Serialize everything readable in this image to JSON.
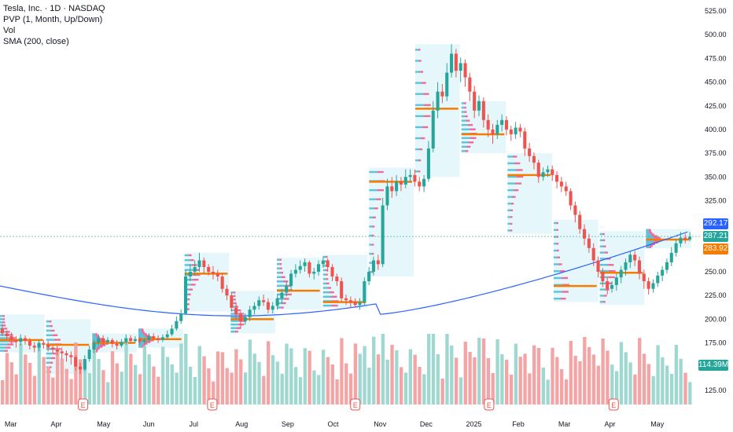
{
  "legend": {
    "title": "Tesla, Inc. · 1D · NASDAQ",
    "indicator1": "PVP (1, Month, Up/Down)",
    "indicator2": "Vol",
    "indicator3": "SMA (200, close)"
  },
  "price_tags": [
    {
      "value": "292.17",
      "color": "#2962ff"
    },
    {
      "value": "287.21",
      "color": "#26a69a"
    },
    {
      "value": "283.92",
      "color": "#f57c00"
    },
    {
      "value": "114.39M",
      "color": "#26a69a"
    }
  ],
  "colors": {
    "up": "#26a69a",
    "down": "#ef5350",
    "sma": "#2962ff",
    "poc": "#f57c00",
    "vol_up": "#9fd8d1",
    "vol_down": "#f4a4a4",
    "profile_bg": "#e6f7fb",
    "prof_up": "#5bc4dc",
    "prof_down": "#ec6d9a"
  },
  "chart_data": {
    "type": "candlestick",
    "ylim": [
      110,
      530
    ],
    "y_ticks": [
      "525.00",
      "500.00",
      "475.00",
      "450.00",
      "425.00",
      "400.00",
      "375.00",
      "350.00",
      "325.00",
      "300.00",
      "275.00",
      "250.00",
      "225.00",
      "200.00",
      "175.00",
      "150.00",
      "125.00"
    ],
    "x_ticks": [
      "Mar",
      "Apr",
      "May",
      "Jun",
      "Jul",
      "Aug",
      "Sep",
      "Oct",
      "Nov",
      "Dec",
      "2025",
      "Feb",
      "Mar",
      "Apr",
      "May"
    ],
    "earnings_markers": [
      "E",
      "E",
      "E",
      "E",
      "E"
    ],
    "monthly_profiles": [
      {
        "month": "Mar",
        "low": 165,
        "high": 205,
        "poc": 178
      },
      {
        "month": "Apr",
        "low": 142,
        "high": 200,
        "poc": 173
      },
      {
        "month": "May",
        "low": 165,
        "high": 185,
        "poc": 175
      },
      {
        "month": "Jun",
        "low": 170,
        "high": 190,
        "poc": 179
      },
      {
        "month": "Jul",
        "low": 208,
        "high": 270,
        "poc": 248
      },
      {
        "month": "Aug",
        "low": 185,
        "high": 230,
        "poc": 200
      },
      {
        "month": "Sep",
        "low": 210,
        "high": 265,
        "poc": 230
      },
      {
        "month": "Oct",
        "low": 212,
        "high": 268,
        "poc": 218
      },
      {
        "month": "Nov",
        "low": 245,
        "high": 360,
        "poc": 345
      },
      {
        "month": "Dec",
        "low": 350,
        "high": 490,
        "poc": 422
      },
      {
        "month": "Jan",
        "low": 375,
        "high": 430,
        "poc": 395
      },
      {
        "month": "Feb",
        "low": 290,
        "high": 375,
        "poc": 352
      },
      {
        "month": "Mar",
        "low": 218,
        "high": 305,
        "poc": 235
      },
      {
        "month": "Apr",
        "low": 215,
        "high": 293,
        "poc": 249
      },
      {
        "month": "May",
        "low": 275,
        "high": 295,
        "poc": 284
      }
    ],
    "candles": [
      [
        190,
        185,
        195,
        182
      ],
      [
        185,
        182,
        188,
        178
      ],
      [
        182,
        178,
        186,
        174
      ],
      [
        178,
        176,
        182,
        170
      ],
      [
        176,
        180,
        184,
        172
      ],
      [
        180,
        177,
        183,
        173
      ],
      [
        177,
        172,
        180,
        168
      ],
      [
        172,
        170,
        176,
        165
      ],
      [
        170,
        175,
        178,
        166
      ],
      [
        175,
        173,
        178,
        169
      ],
      [
        173,
        170,
        177,
        166
      ],
      [
        170,
        168,
        173,
        164
      ],
      [
        168,
        166,
        172,
        162
      ],
      [
        166,
        164,
        170,
        158
      ],
      [
        164,
        162,
        167,
        155
      ],
      [
        162,
        160,
        166,
        152
      ],
      [
        160,
        150,
        162,
        146
      ],
      [
        150,
        147,
        154,
        142
      ],
      [
        147,
        158,
        162,
        145
      ],
      [
        158,
        168,
        172,
        155
      ],
      [
        168,
        175,
        178,
        164
      ],
      [
        175,
        180,
        184,
        172
      ],
      [
        180,
        176,
        183,
        172
      ],
      [
        176,
        178,
        181,
        173
      ],
      [
        178,
        174,
        180,
        170
      ],
      [
        174,
        172,
        178,
        168
      ],
      [
        172,
        176,
        179,
        170
      ],
      [
        176,
        180,
        184,
        173
      ],
      [
        180,
        177,
        183,
        174
      ],
      [
        177,
        179,
        182,
        175
      ],
      [
        179,
        176,
        181,
        173
      ],
      [
        176,
        178,
        180,
        174
      ],
      [
        178,
        182,
        185,
        176
      ],
      [
        182,
        180,
        185,
        177
      ],
      [
        180,
        178,
        183,
        175
      ],
      [
        178,
        181,
        184,
        176
      ],
      [
        181,
        184,
        188,
        179
      ],
      [
        184,
        190,
        194,
        182
      ],
      [
        190,
        198,
        203,
        188
      ],
      [
        198,
        206,
        210,
        195
      ],
      [
        206,
        245,
        252,
        204
      ],
      [
        245,
        250,
        258,
        240
      ],
      [
        250,
        255,
        262,
        246
      ],
      [
        255,
        262,
        270,
        250
      ],
      [
        262,
        255,
        265,
        248
      ],
      [
        255,
        250,
        258,
        246
      ],
      [
        250,
        248,
        256,
        242
      ],
      [
        248,
        245,
        252,
        240
      ],
      [
        245,
        232,
        248,
        228
      ],
      [
        232,
        225,
        236,
        220
      ],
      [
        225,
        212,
        228,
        208
      ],
      [
        212,
        205,
        216,
        200
      ],
      [
        205,
        198,
        208,
        190
      ],
      [
        198,
        202,
        206,
        194
      ],
      [
        202,
        210,
        214,
        198
      ],
      [
        210,
        214,
        218,
        205
      ],
      [
        214,
        220,
        224,
        210
      ],
      [
        220,
        218,
        226,
        214
      ],
      [
        218,
        210,
        222,
        206
      ],
      [
        210,
        214,
        218,
        206
      ],
      [
        214,
        222,
        226,
        210
      ],
      [
        222,
        228,
        232,
        216
      ],
      [
        228,
        235,
        240,
        224
      ],
      [
        235,
        248,
        252,
        230
      ],
      [
        248,
        252,
        258,
        244
      ],
      [
        252,
        256,
        262,
        248
      ],
      [
        256,
        260,
        264,
        250
      ],
      [
        260,
        248,
        262,
        244
      ],
      [
        248,
        250,
        254,
        242
      ],
      [
        250,
        258,
        262,
        246
      ],
      [
        258,
        262,
        266,
        254
      ],
      [
        262,
        255,
        264,
        250
      ],
      [
        255,
        245,
        258,
        240
      ],
      [
        245,
        240,
        248,
        235
      ],
      [
        240,
        222,
        244,
        218
      ],
      [
        222,
        220,
        226,
        215
      ],
      [
        220,
        218,
        224,
        212
      ],
      [
        218,
        215,
        222,
        212
      ],
      [
        215,
        218,
        222,
        210
      ],
      [
        218,
        240,
        244,
        215
      ],
      [
        240,
        250,
        255,
        236
      ],
      [
        250,
        262,
        266,
        246
      ],
      [
        262,
        258,
        268,
        252
      ],
      [
        258,
        320,
        328,
        255
      ],
      [
        320,
        340,
        348,
        315
      ],
      [
        340,
        335,
        350,
        328
      ],
      [
        335,
        345,
        352,
        330
      ],
      [
        345,
        342,
        350,
        335
      ],
      [
        342,
        350,
        358,
        338
      ],
      [
        350,
        352,
        358,
        344
      ],
      [
        352,
        345,
        358,
        340
      ],
      [
        345,
        340,
        350,
        335
      ],
      [
        340,
        348,
        352,
        334
      ],
      [
        348,
        380,
        388,
        345
      ],
      [
        380,
        420,
        430,
        376
      ],
      [
        420,
        440,
        450,
        412
      ],
      [
        440,
        435,
        448,
        428
      ],
      [
        435,
        460,
        470,
        430
      ],
      [
        460,
        480,
        490,
        455
      ],
      [
        480,
        462,
        485,
        455
      ],
      [
        462,
        470,
        476,
        450
      ],
      [
        470,
        455,
        474,
        445
      ],
      [
        455,
        440,
        460,
        430
      ],
      [
        440,
        420,
        446,
        412
      ],
      [
        420,
        430,
        436,
        414
      ],
      [
        430,
        410,
        434,
        402
      ],
      [
        410,
        400,
        416,
        392
      ],
      [
        400,
        395,
        406,
        385
      ],
      [
        395,
        405,
        410,
        390
      ],
      [
        405,
        410,
        416,
        398
      ],
      [
        410,
        400,
        414,
        394
      ],
      [
        400,
        395,
        404,
        388
      ],
      [
        395,
        402,
        408,
        390
      ],
      [
        402,
        398,
        406,
        392
      ],
      [
        398,
        380,
        402,
        372
      ],
      [
        380,
        372,
        386,
        366
      ],
      [
        372,
        365,
        376,
        358
      ],
      [
        365,
        350,
        368,
        344
      ],
      [
        350,
        355,
        360,
        346
      ],
      [
        355,
        358,
        362,
        350
      ],
      [
        358,
        352,
        362,
        346
      ],
      [
        352,
        345,
        356,
        338
      ],
      [
        345,
        340,
        350,
        334
      ],
      [
        340,
        335,
        345,
        330
      ],
      [
        335,
        320,
        338,
        315
      ],
      [
        320,
        310,
        324,
        302
      ],
      [
        310,
        295,
        314,
        290
      ],
      [
        295,
        285,
        300,
        278
      ],
      [
        285,
        275,
        290,
        270
      ],
      [
        275,
        262,
        280,
        256
      ],
      [
        262,
        250,
        266,
        244
      ],
      [
        250,
        240,
        254,
        234
      ],
      [
        240,
        232,
        244,
        226
      ],
      [
        232,
        236,
        240,
        228
      ],
      [
        236,
        244,
        248,
        230
      ],
      [
        244,
        252,
        256,
        238
      ],
      [
        252,
        260,
        264,
        246
      ],
      [
        260,
        268,
        272,
        254
      ],
      [
        268,
        262,
        272,
        256
      ],
      [
        262,
        248,
        266,
        242
      ],
      [
        248,
        240,
        252,
        232
      ],
      [
        240,
        232,
        244,
        226
      ],
      [
        232,
        238,
        242,
        228
      ],
      [
        238,
        246,
        250,
        234
      ],
      [
        246,
        252,
        256,
        240
      ],
      [
        252,
        260,
        264,
        248
      ],
      [
        260,
        270,
        276,
        256
      ],
      [
        270,
        280,
        284,
        266
      ],
      [
        280,
        286,
        292,
        276
      ],
      [
        286,
        284,
        290,
        280
      ],
      [
        284,
        287,
        292,
        282
      ]
    ]
  }
}
